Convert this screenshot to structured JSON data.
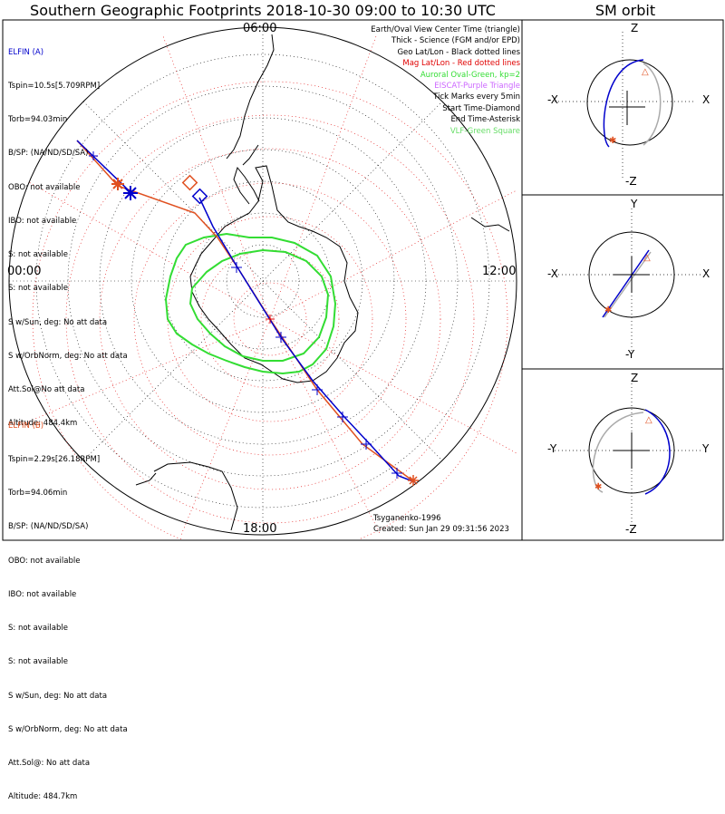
{
  "title": "Southern Geographic Footprints 2018-10-30 09:00 to 10:30 UTC",
  "sm_title": "SM orbit",
  "mlt_labels": {
    "top": "06:00",
    "left": "00:00",
    "right": "12:00",
    "bottom": "18:00"
  },
  "elfin_a": {
    "header": "ELFIN (A)",
    "lines": [
      "Tspin=10.5s[5.709RPM]",
      "Torb=94.03min",
      "B/SP: (NA/ND/SD/SA)",
      "OBO: not available",
      "IBO: not available",
      "S: not available",
      "S: not available",
      "S w/Sun, deg: No att data",
      "S w/OrbNorm, deg: No att data",
      "Att.Sol@No att data",
      "Altitude: 484.4km"
    ]
  },
  "elfin_b": {
    "header": "ELFIN (B)",
    "lines": [
      "Tspin=2.29s[26.18RPM]",
      "Torb=94.06min",
      "B/SP: (NA/ND/SD/SA)",
      "OBO: not available",
      "IBO: not available",
      "S: not available",
      "S: not available",
      "S w/Sun, deg: No att data",
      "S w/OrbNorm, deg: No att data",
      "Att.Sol@: No att data",
      "Altitude: 484.7km"
    ]
  },
  "legend": {
    "l1": "Earth/Oval View Center Time (triangle)",
    "l2": "Thick - Science (FGM and/or EPD)",
    "l3": "Geo Lat/Lon - Black dotted lines",
    "l4": "Mag Lat/Lon - Red dotted lines",
    "l5": "Auroral Oval-Green, kp=2",
    "l6": "EISCAT-Purple Triangle",
    "l7": "Tick Marks every 5min",
    "l8": "Start Time-Diamond",
    "l9": "End Time-Asterisk",
    "l10": "VLF-Green Square"
  },
  "credits": {
    "model": "Tsyganenko-1996",
    "created": "Created: Sun Jan 29 09:31:56 2023"
  },
  "sm_axes": {
    "p1": {
      "top": "Z",
      "bottom": "-Z",
      "left": "-X",
      "right": "X"
    },
    "p2": {
      "top": "Y",
      "bottom": "-Y",
      "left": "-X",
      "right": "X"
    },
    "p3": {
      "top": "Z",
      "bottom": "-Z",
      "left": "-Y",
      "right": "Y"
    }
  },
  "colors": {
    "elfin_a": "#0000cc",
    "elfin_b": "#e05020",
    "oval": "#33dd33",
    "mag_grid": "#e00000"
  }
}
